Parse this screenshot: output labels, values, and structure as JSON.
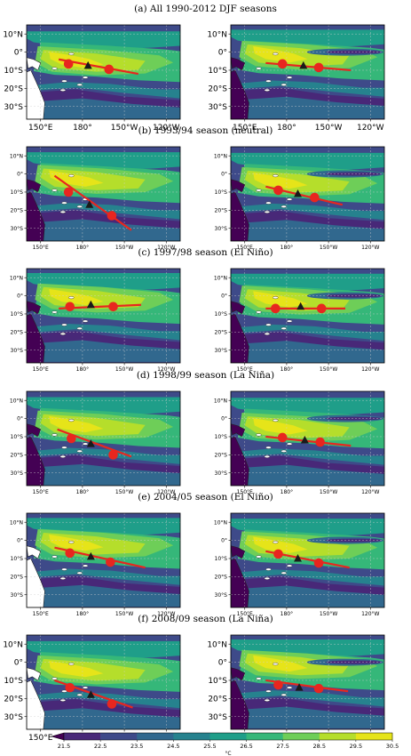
{
  "chart_data": {
    "type": "heatmap",
    "map_extent": {
      "lon": [
        140,
        250
      ],
      "lat": [
        -37,
        15
      ]
    },
    "colorbar": {
      "ticks": [
        "21.5",
        "22.5",
        "23.5",
        "24.5",
        "25.5",
        "26.5",
        "27.5",
        "28.5",
        "29.5",
        "30.5"
      ],
      "unit": "°C",
      "extend": "min",
      "colors": [
        "#440154",
        "#482878",
        "#3e4a89",
        "#31688e",
        "#26828e",
        "#1f9e89",
        "#35b779",
        "#6ece58",
        "#b5de2b",
        "#e6e419"
      ]
    },
    "marker_colors": {
      "circle": "#e8261f",
      "triangle": "#1a1a1a",
      "line": "#e8261f"
    },
    "panels": [
      {
        "caption": "(a) All 1990-2012 DJF seasons",
        "lat_ticks": [
          "10°N",
          "0°",
          "10°S",
          "20°S",
          "30°S"
        ],
        "lon_ticks": [
          "150°E",
          "180°",
          "150°W",
          "120°W"
        ],
        "maps": [
          {
            "line": [
              [
                163,
                -4
              ],
              [
                220,
                -12
              ]
            ],
            "circles": [
              [
                170,
                -6.5
              ],
              [
                199,
                -9.5
              ]
            ],
            "triangle": [
              184,
              -7.5
            ]
          },
          {
            "line": [
              [
                165,
                -6
              ],
              [
                226,
                -10
              ]
            ],
            "circles": [
              [
                177,
                -6.5
              ],
              [
                203,
                -8.5
              ]
            ],
            "triangle": [
              192,
              -7.5
            ]
          }
        ]
      },
      {
        "caption": "(b) 1993/94 season (neutral)",
        "lat_ticks": [
          "10°N",
          "0°",
          "10°S",
          "20°S",
          "30°S"
        ],
        "lon_ticks": [
          "150°E",
          "180°",
          "150°W",
          "120°W"
        ],
        "maps": [
          {
            "line": [
              [
                160,
                -1
              ],
              [
                215,
                -31
              ]
            ],
            "circles": [
              [
                170,
                -10
              ],
              [
                201,
                -23
              ]
            ],
            "triangle": [
              185,
              -17
            ]
          },
          {
            "line": [
              [
                165,
                -7
              ],
              [
                220,
                -17
              ]
            ],
            "circles": [
              [
                174,
                -9
              ],
              [
                200,
                -13
              ]
            ],
            "triangle": [
              188,
              -11
            ]
          }
        ]
      },
      {
        "caption": "(c) 1997/98 season (El Niño)",
        "lat_ticks": [
          "10°N",
          "0°",
          "10°S",
          "20°S",
          "30°S"
        ],
        "lon_ticks": [
          "150°E",
          "180°",
          "150°W",
          "120°W"
        ],
        "maps": [
          {
            "line": [
              [
                163,
                -7
              ],
              [
                222,
                -5
              ]
            ],
            "circles": [
              [
                171,
                -6
              ],
              [
                202,
                -6
              ]
            ],
            "triangle": [
              186,
              -5
            ]
          },
          {
            "line": [
              [
                165,
                -7
              ],
              [
                222,
                -7
              ]
            ],
            "circles": [
              [
                172,
                -7
              ],
              [
                205,
                -7
              ]
            ],
            "triangle": [
              190,
              -6
            ]
          }
        ]
      },
      {
        "caption": "(d) 1998/99 season (La Niña)",
        "lat_ticks": [
          "10°N",
          "0°",
          "10°S",
          "20°S",
          "30°S"
        ],
        "lon_ticks": [
          "150°E",
          "180°",
          "150°W",
          "120°W"
        ],
        "maps": [
          {
            "line": [
              [
                162,
                -6
              ],
              [
                215,
                -21
              ]
            ],
            "circles": [
              [
                172,
                -11
              ],
              [
                202,
                -20
              ]
            ],
            "triangle": [
              186,
              -14
            ]
          },
          {
            "line": [
              [
                165,
                -10
              ],
              [
                226,
                -15
              ]
            ],
            "circles": [
              [
                177,
                -10.5
              ],
              [
                204,
                -13
              ]
            ],
            "triangle": [
              193,
              -12
            ]
          }
        ]
      },
      {
        "caption": "(e) 2004/05 season (El Niño)",
        "lat_ticks": [
          "10°N",
          "0°",
          "10°S",
          "20°S",
          "30°S"
        ],
        "lon_ticks": [
          "150°E",
          "180°",
          "150°W",
          "120°W"
        ],
        "maps": [
          {
            "line": [
              [
                160,
                -4
              ],
              [
                225,
                -15
              ]
            ],
            "circles": [
              [
                171,
                -7
              ],
              [
                200,
                -12
              ]
            ],
            "triangle": [
              186,
              -9
            ]
          },
          {
            "line": [
              [
                165,
                -6
              ],
              [
                225,
                -15
              ]
            ],
            "circles": [
              [
                174,
                -7.5
              ],
              [
                203,
                -12.5
              ]
            ],
            "triangle": [
              188,
              -10
            ]
          }
        ]
      },
      {
        "caption": "(f) 2008/09 season (La Niña)",
        "lat_ticks": [
          "10°N",
          "0°",
          "10°S",
          "20°S",
          "30°S"
        ],
        "lon_ticks": [
          "150°E",
          "180°",
          "150°W",
          "120°W"
        ],
        "maps": [
          {
            "line": [
              [
                160,
                -10
              ],
              [
                216,
                -25
              ]
            ],
            "circles": [
              [
                171,
                -14
              ],
              [
                201,
                -23
              ]
            ],
            "triangle": [
              186,
              -18
            ]
          },
          {
            "line": [
              [
                165,
                -10
              ],
              [
                224,
                -16
              ]
            ],
            "circles": [
              [
                174,
                -12.5
              ],
              [
                203,
                -14.5
              ]
            ],
            "triangle": [
              189,
              -14
            ]
          }
        ]
      }
    ]
  }
}
